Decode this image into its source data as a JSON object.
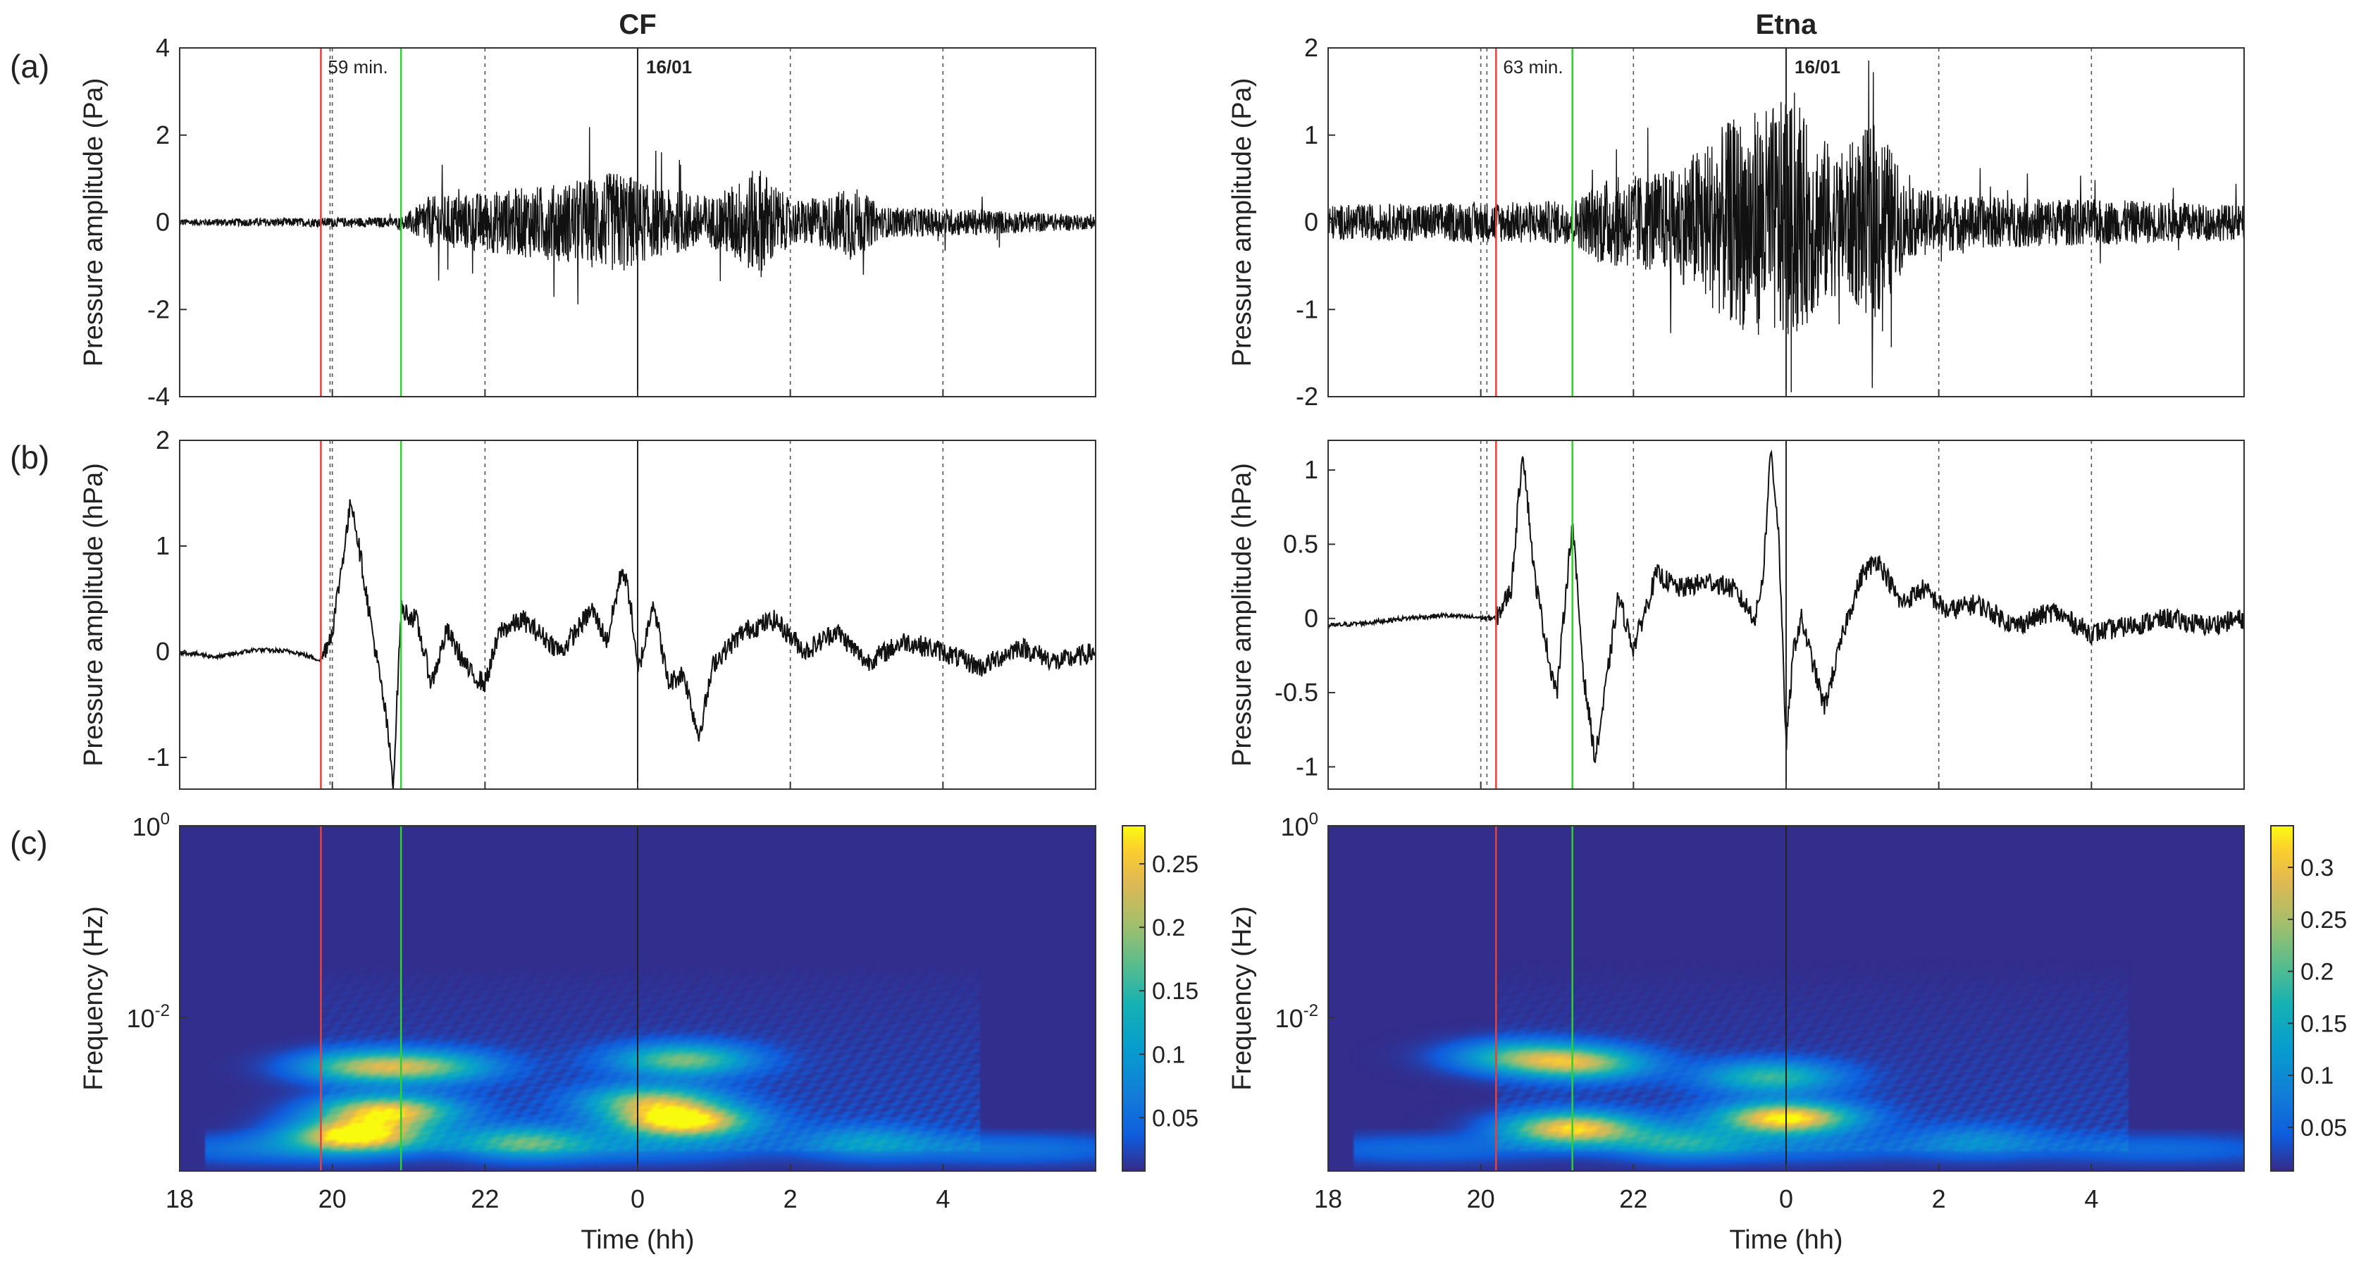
{
  "figure": {
    "panel_labels": [
      "(a)",
      "(b)",
      "(c)"
    ],
    "xlabel": "Time (hh)",
    "x_tick_labels": [
      "18",
      "20",
      "22",
      "0",
      "2",
      "4"
    ],
    "x_tick_hours": [
      0,
      2,
      4,
      6,
      8,
      10
    ],
    "x_range_hours": [
      0,
      12
    ],
    "date_label": "16/01",
    "date_line_hour": 6,
    "colors": {
      "red_line": "#e8413c",
      "green_line": "#2fd12f",
      "trace": "#111111",
      "grid": "#555555"
    }
  },
  "chart_data": [
    {
      "type": "line",
      "station": "CF",
      "panel": "(a)",
      "title": "CF",
      "ylabel": "Pressure amplitude (Pa)",
      "ylim": [
        -4,
        4
      ],
      "y_ticks": [
        -4,
        -2,
        0,
        2,
        4
      ],
      "annotation": "59 min.",
      "red_line_hour": 1.85,
      "green_line_hour": 2.9,
      "envelope": {
        "hours": [
          0,
          2.9,
          3.3,
          4.0,
          5.0,
          5.8,
          6.2,
          7.0,
          7.6,
          8.0,
          8.5,
          8.8,
          9.2,
          10.5,
          12
        ],
        "amplitude": [
          0.08,
          0.12,
          0.6,
          0.7,
          0.9,
          1.2,
          0.8,
          0.6,
          1.3,
          0.5,
          0.6,
          0.9,
          0.35,
          0.3,
          0.15
        ]
      }
    },
    {
      "type": "line",
      "station": "Etna",
      "panel": "(a)",
      "title": "Etna",
      "ylabel": "Pressure amplitude (Pa)",
      "ylim": [
        -2,
        2
      ],
      "y_ticks": [
        -2,
        -1,
        0,
        1,
        2
      ],
      "annotation": "63 min.",
      "red_line_hour": 2.2,
      "green_line_hour": 3.2,
      "envelope": {
        "hours": [
          0,
          3.2,
          3.6,
          4.5,
          5.3,
          6.0,
          6.7,
          7.2,
          7.6,
          8.5,
          10.5,
          12
        ],
        "amplitude": [
          0.2,
          0.25,
          0.5,
          0.6,
          1.2,
          1.4,
          0.8,
          1.2,
          0.4,
          0.3,
          0.25,
          0.2
        ]
      }
    },
    {
      "type": "line",
      "station": "CF",
      "panel": "(b)",
      "ylabel": "Pressure amplitude (hPa)",
      "ylim": [
        -1.3,
        2
      ],
      "y_ticks": [
        -1,
        0,
        1,
        2
      ],
      "red_line_hour": 1.85,
      "green_line_hour": 2.9,
      "x": [
        0,
        0.5,
        1.0,
        1.5,
        1.85,
        2.0,
        2.25,
        2.5,
        2.7,
        2.8,
        2.9,
        3.1,
        3.3,
        3.5,
        3.8,
        4.0,
        4.2,
        4.5,
        5.0,
        5.4,
        5.6,
        5.8,
        5.9,
        6.0,
        6.1,
        6.2,
        6.4,
        6.6,
        6.8,
        7.0,
        7.4,
        7.8,
        8.2,
        8.6,
        9.0,
        9.5,
        10,
        10.5,
        11,
        11.5,
        12
      ],
      "y": [
        0,
        -0.05,
        0.02,
        0,
        -0.08,
        0.2,
        1.45,
        0.3,
        -0.6,
        -1.25,
        0.4,
        0.3,
        -0.3,
        0.2,
        -0.2,
        -0.3,
        0.2,
        0.3,
        0.0,
        0.4,
        0.1,
        0.8,
        0.5,
        -0.2,
        0.1,
        0.5,
        -0.3,
        -0.2,
        -0.8,
        -0.1,
        0.2,
        0.3,
        0.0,
        0.2,
        -0.1,
        0.1,
        0.0,
        -0.15,
        0.05,
        -0.1,
        0.0
      ]
    },
    {
      "type": "line",
      "station": "Etna",
      "panel": "(b)",
      "ylabel": "Pressure amplitude (hPa)",
      "ylim": [
        -1.15,
        1.2
      ],
      "y_ticks": [
        -1,
        -0.5,
        0,
        0.5,
        1
      ],
      "red_line_hour": 2.2,
      "green_line_hour": 3.2,
      "x": [
        0,
        0.5,
        1.0,
        1.5,
        2.2,
        2.4,
        2.55,
        2.7,
        2.9,
        3.0,
        3.1,
        3.2,
        3.35,
        3.5,
        3.6,
        3.8,
        4.0,
        4.3,
        4.6,
        5.0,
        5.3,
        5.6,
        5.7,
        5.8,
        5.9,
        6.0,
        6.1,
        6.2,
        6.5,
        6.8,
        7.0,
        7.2,
        7.5,
        7.8,
        8.1,
        8.5,
        9.0,
        9.5,
        10,
        10.5,
        11,
        11.5,
        12
      ],
      "y": [
        -0.05,
        -0.03,
        0.0,
        0.02,
        0.0,
        0.2,
        1.15,
        0.3,
        -0.3,
        -0.5,
        0.1,
        0.65,
        -0.4,
        -0.95,
        -0.6,
        0.15,
        -0.2,
        0.3,
        0.2,
        0.25,
        0.2,
        0.0,
        0.3,
        1.15,
        0.6,
        -0.85,
        -0.2,
        0.0,
        -0.6,
        0.0,
        0.3,
        0.4,
        0.1,
        0.2,
        0.05,
        0.1,
        -0.05,
        0.05,
        -0.1,
        -0.05,
        0.0,
        -0.05,
        0.0
      ]
    },
    {
      "type": "heatmap",
      "station": "CF",
      "panel": "(c)",
      "ylabel": "Frequency (Hz)",
      "y_tick_labels": [
        "10",
        "10"
      ],
      "y_tick_exponents": [
        "0",
        "-2"
      ],
      "colorbar_ticks": [
        "0.05",
        "0.1",
        "0.15",
        "0.2",
        "0.25"
      ],
      "colorbar_values": [
        0.05,
        0.1,
        0.15,
        0.2,
        0.25
      ],
      "colorbar_range": [
        0.008,
        0.28
      ],
      "red_line_hour": 1.85,
      "green_line_hour": 2.9,
      "blobs": [
        {
          "hour": 2.3,
          "freq_frac": 0.1,
          "value": 0.27
        },
        {
          "hour": 2.7,
          "freq_frac": 0.17,
          "value": 0.24
        },
        {
          "hour": 2.4,
          "freq_frac": 0.3,
          "value": 0.16
        },
        {
          "hour": 3.3,
          "freq_frac": 0.3,
          "value": 0.13
        },
        {
          "hour": 6.6,
          "freq_frac": 0.14,
          "value": 0.28
        },
        {
          "hour": 6.2,
          "freq_frac": 0.2,
          "value": 0.18
        },
        {
          "hour": 6.6,
          "freq_frac": 0.32,
          "value": 0.17
        },
        {
          "hour": 4.5,
          "freq_frac": 0.08,
          "value": 0.14
        },
        {
          "hour": 9.0,
          "freq_frac": 0.08,
          "value": 0.08
        }
      ]
    },
    {
      "type": "heatmap",
      "station": "Etna",
      "panel": "(c)",
      "ylabel": "Frequency (Hz)",
      "y_tick_labels": [
        "10",
        "10"
      ],
      "y_tick_exponents": [
        "0",
        "-2"
      ],
      "colorbar_ticks": [
        "0.05",
        "0.1",
        "0.15",
        "0.2",
        "0.25",
        "0.3"
      ],
      "colorbar_values": [
        0.05,
        0.1,
        0.15,
        0.2,
        0.25,
        0.3
      ],
      "colorbar_range": [
        0.008,
        0.34
      ],
      "red_line_hour": 2.2,
      "green_line_hour": 3.2,
      "blobs": [
        {
          "hour": 3.2,
          "freq_frac": 0.12,
          "value": 0.3
        },
        {
          "hour": 2.5,
          "freq_frac": 0.33,
          "value": 0.16
        },
        {
          "hour": 3.3,
          "freq_frac": 0.31,
          "value": 0.22
        },
        {
          "hour": 6.0,
          "freq_frac": 0.15,
          "value": 0.33
        },
        {
          "hour": 5.8,
          "freq_frac": 0.27,
          "value": 0.17
        },
        {
          "hour": 4.6,
          "freq_frac": 0.08,
          "value": 0.13
        },
        {
          "hour": 8.5,
          "freq_frac": 0.08,
          "value": 0.08
        }
      ]
    }
  ]
}
